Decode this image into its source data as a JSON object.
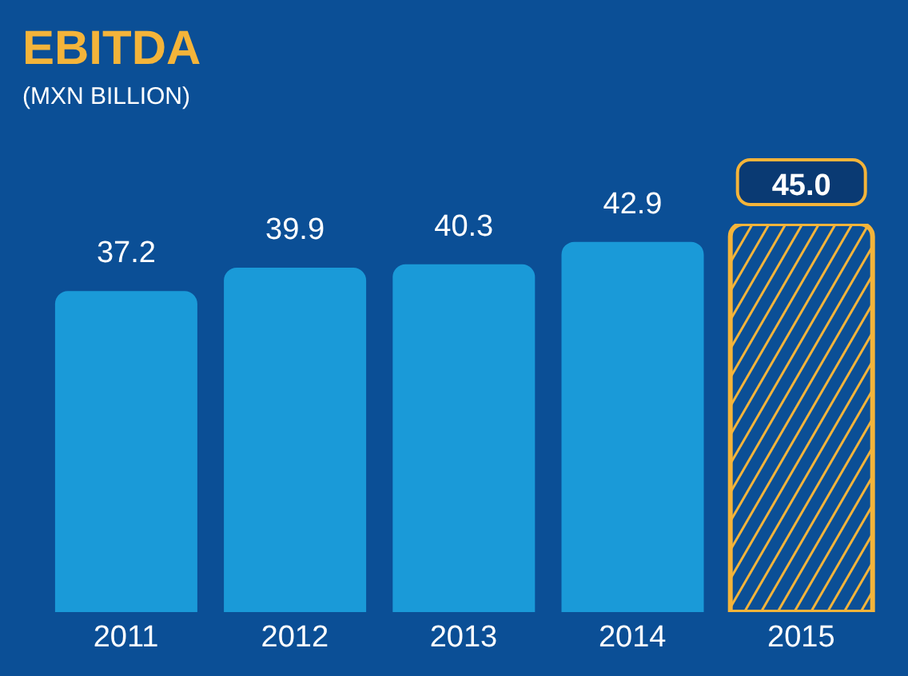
{
  "chart_data": {
    "type": "bar",
    "title": "EBITDA",
    "subtitle": "(MXN BILLION)",
    "categories": [
      "2011",
      "2012",
      "2013",
      "2014",
      "2015"
    ],
    "values": [
      37.2,
      39.9,
      40.3,
      42.9,
      45.0
    ],
    "value_labels": [
      "37.2",
      "39.9",
      "40.3",
      "42.9",
      "45.0"
    ],
    "colors": [
      "#1a9ad8",
      "#1a9ad8",
      "#1a9ad8",
      "#1a9ad8",
      "#f4b43a"
    ],
    "tick_labels": "x"
  }
}
